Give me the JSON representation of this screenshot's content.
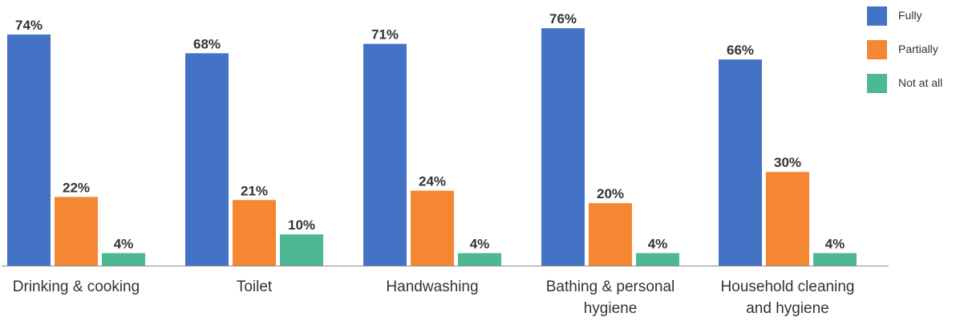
{
  "chart_data": {
    "type": "bar",
    "categories": [
      [
        "Drinking & cooking"
      ],
      [
        "Toilet"
      ],
      [
        "Handwashing"
      ],
      [
        "Bathing & personal",
        "hygiene"
      ],
      [
        "Household cleaning",
        "and hygiene"
      ]
    ],
    "series": [
      {
        "name": "Fully",
        "color": "#4472C4",
        "values": [
          74,
          68,
          71,
          76,
          66
        ]
      },
      {
        "name": "Partially",
        "color": "#F58733",
        "values": [
          22,
          21,
          24,
          20,
          30
        ]
      },
      {
        "name": "Not at all",
        "color": "#4DB891",
        "values": [
          4,
          10,
          4,
          4,
          4
        ]
      }
    ],
    "value_suffix": "%",
    "ylim": [
      0,
      80
    ],
    "grid": false,
    "legend_position": "top-right",
    "axis_color": "#8c8c8c",
    "label_color": "#333333"
  }
}
